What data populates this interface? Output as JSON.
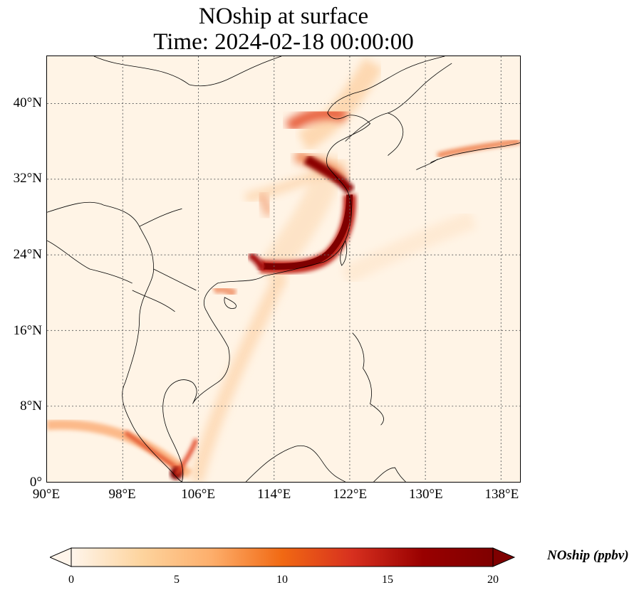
{
  "title": {
    "line1": "NOship at surface",
    "line2": "Time: 2024-02-18 00:00:00"
  },
  "map": {
    "extent": {
      "lon": [
        90,
        140
      ],
      "lat": [
        0,
        45
      ]
    },
    "lat_ticks": [
      {
        "value": 0,
        "label": "0°"
      },
      {
        "value": 8,
        "label": "8°N"
      },
      {
        "value": 16,
        "label": "16°N"
      },
      {
        "value": 24,
        "label": "24°N"
      },
      {
        "value": 32,
        "label": "32°N"
      },
      {
        "value": 40,
        "label": "40°N"
      }
    ],
    "lon_ticks": [
      {
        "value": 90,
        "label": "90°E"
      },
      {
        "value": 98,
        "label": "98°E"
      },
      {
        "value": 106,
        "label": "106°E"
      },
      {
        "value": 114,
        "label": "114°E"
      },
      {
        "value": 122,
        "label": "122°E"
      },
      {
        "value": 130,
        "label": "130°E"
      },
      {
        "value": 138,
        "label": "138°E"
      }
    ],
    "gridlines": "dotted"
  },
  "colorbar": {
    "label": "NOship (ppbv)",
    "min": 0,
    "max": 20,
    "ticks": [
      "0",
      "5",
      "10",
      "15",
      "20"
    ],
    "extend": "both",
    "colormap": [
      "#fff5eb",
      "#fdd49e",
      "#fdae6b",
      "#f16913",
      "#d7301f",
      "#990000",
      "#7f0000"
    ]
  }
}
